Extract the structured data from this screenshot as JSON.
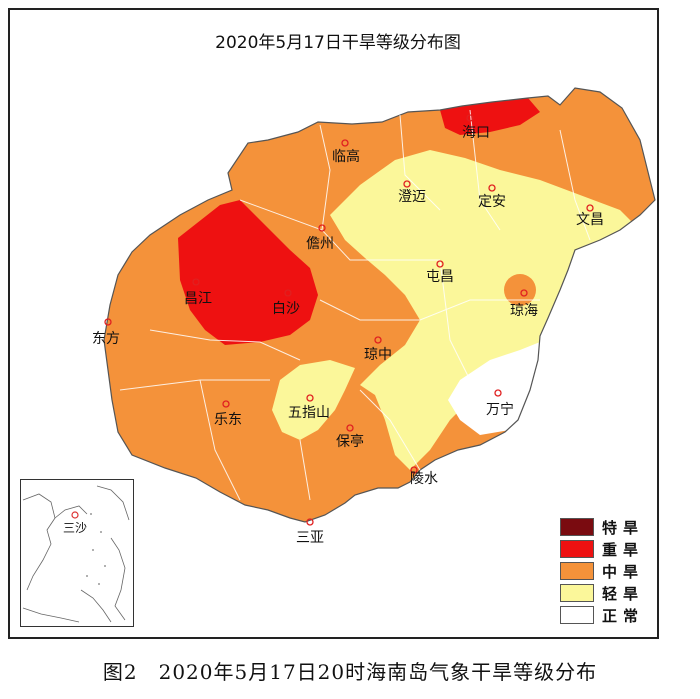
{
  "map": {
    "title": "2020年5月17日干旱等级分布图",
    "caption": "图2　2020年5月17日20时海南岛气象干旱等级分布",
    "colors": {
      "extreme": "#7a0b10",
      "severe": "#ee1111",
      "moderate": "#f4923a",
      "light": "#fbf79a",
      "normal": "#ffffff"
    },
    "cities": [
      {
        "name": "海口"
      },
      {
        "name": "临高"
      },
      {
        "name": "澄迈"
      },
      {
        "name": "定安"
      },
      {
        "name": "文昌"
      },
      {
        "name": "儋州"
      },
      {
        "name": "屯昌"
      },
      {
        "name": "琼海"
      },
      {
        "name": "昌江"
      },
      {
        "name": "白沙"
      },
      {
        "name": "东方"
      },
      {
        "name": "琼中"
      },
      {
        "name": "万宁"
      },
      {
        "name": "五指山"
      },
      {
        "name": "乐东"
      },
      {
        "name": "保亭"
      },
      {
        "name": "陵水"
      },
      {
        "name": "三亚"
      }
    ],
    "inset_label": "三沙",
    "legend": [
      {
        "label": "特旱",
        "color": "#7a0b10"
      },
      {
        "label": "重旱",
        "color": "#ee1111"
      },
      {
        "label": "中旱",
        "color": "#f4923a"
      },
      {
        "label": "轻旱",
        "color": "#fbf79a"
      },
      {
        "label": "正常",
        "color": "#ffffff"
      }
    ]
  }
}
